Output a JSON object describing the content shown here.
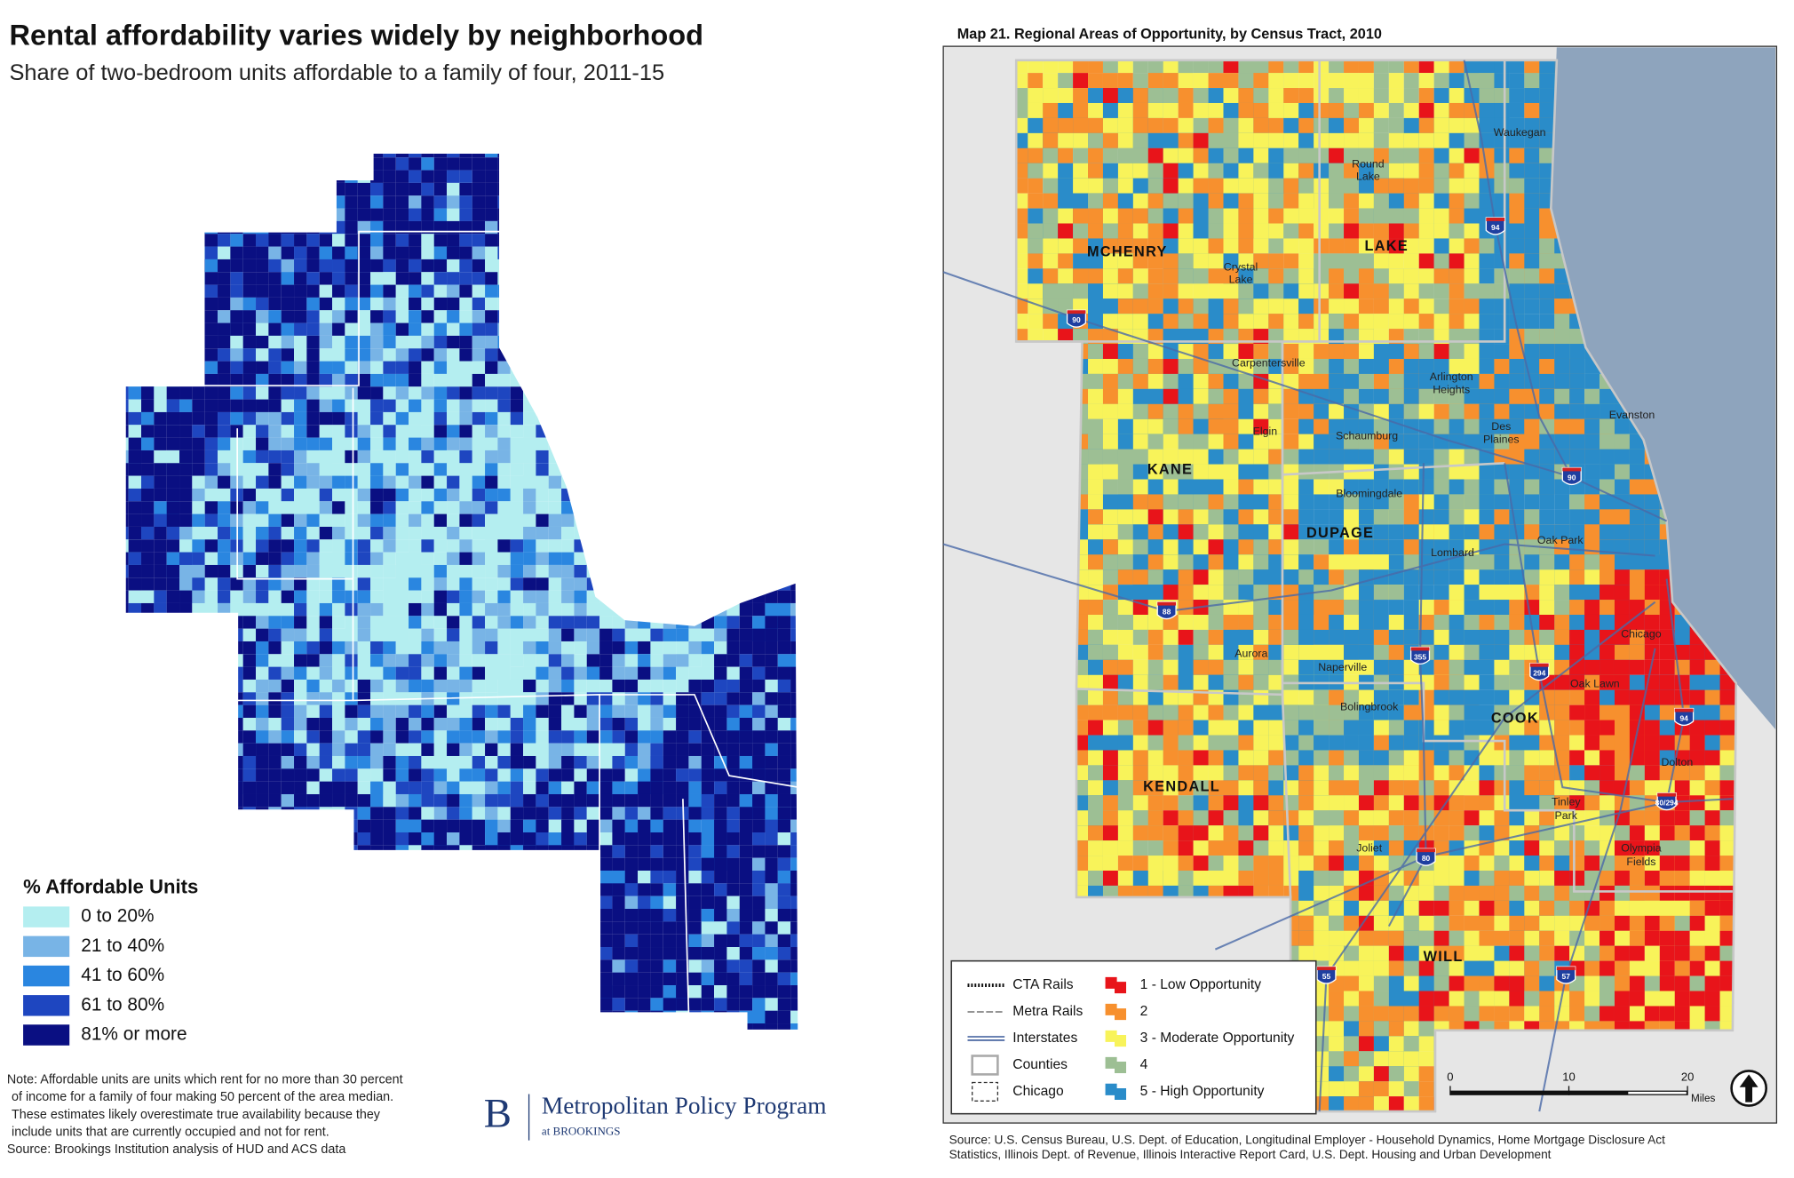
{
  "left": {
    "title": "Rental affordability varies widely by neighborhood",
    "subtitle": "Share of two-bedroom units affordable to a family of four, 2011-15",
    "legend": {
      "title": "% Affordable Units",
      "items": [
        {
          "label": "0 to 20%",
          "color": "#b4eef0"
        },
        {
          "label": "21 to 40%",
          "color": "#78b4e6"
        },
        {
          "label": "41 to 60%",
          "color": "#2a86e0"
        },
        {
          "label": "61 to 80%",
          "color": "#1e46c0"
        },
        {
          "label": "81% or more",
          "color": "#0a0f82"
        }
      ]
    },
    "note": [
      "Note: Affordable units are units which rent for no more than 30 percent",
      "of income for a family of four making 50 percent of the area median.",
      "These estimates likely overestimate true availability because they",
      "include units that are currently occupied and not for rent.",
      "Source: Brookings Institution analysis of HUD and ACS data"
    ],
    "logo": {
      "mark": "B",
      "name": "Metropolitan Policy Program",
      "sub": "at BROOKINGS"
    }
  },
  "right": {
    "title": "Map 21. Regional Areas of Opportunity, by Census Tract, 2010",
    "counties": [
      "MCHENRY",
      "LAKE",
      "KANE",
      "DUPAGE",
      "COOK",
      "KENDALL",
      "WILL"
    ],
    "places": [
      "Waukegan",
      "Round",
      "Lake",
      "Crystal",
      "Lake",
      "Carpentersville",
      "Arlington",
      "Heights",
      "Evanston",
      "Elgin",
      "Schaumburg",
      "Des",
      "Plaines",
      "Bloomingdale",
      "Oak Park",
      "Lombard",
      "Chicago",
      "Aurora",
      "Naperville",
      "Oak Lawn",
      "Bolingbrook",
      "Tinley",
      "Park",
      "Dolton",
      "Joliet",
      "Olympia",
      "Fields"
    ],
    "shields": [
      "90",
      "94",
      "90",
      "88",
      "355",
      "294",
      "94",
      "80/294",
      "80",
      "55",
      "57"
    ],
    "legend": {
      "lines": [
        "CTA Rails",
        "Metra Rails",
        "Interstates",
        "Counties",
        "Chicago"
      ],
      "classes": [
        {
          "label": "1 - Low Opportunity",
          "color": "#e8141a"
        },
        {
          "label": "2",
          "color": "#f7902e"
        },
        {
          "label": "3 - Moderate Opportunity",
          "color": "#f8f35a"
        },
        {
          "label": "4",
          "color": "#9dbf94"
        },
        {
          "label": "5 - High Opportunity",
          "color": "#2a8cc9"
        }
      ]
    },
    "scale": {
      "ticks": [
        0,
        10,
        20
      ],
      "unit": "Miles"
    },
    "source": [
      "Source: U.S. Census Bureau, U.S. Dept. of Education, Longitudinal Employer - Household Dynamics, Home Mortgage Disclosure Act",
      "Statistics, Illinois Dept. of Revenue, Illinois Interactive Report Card, U.S. Dept. Housing and Urban Development"
    ]
  }
}
